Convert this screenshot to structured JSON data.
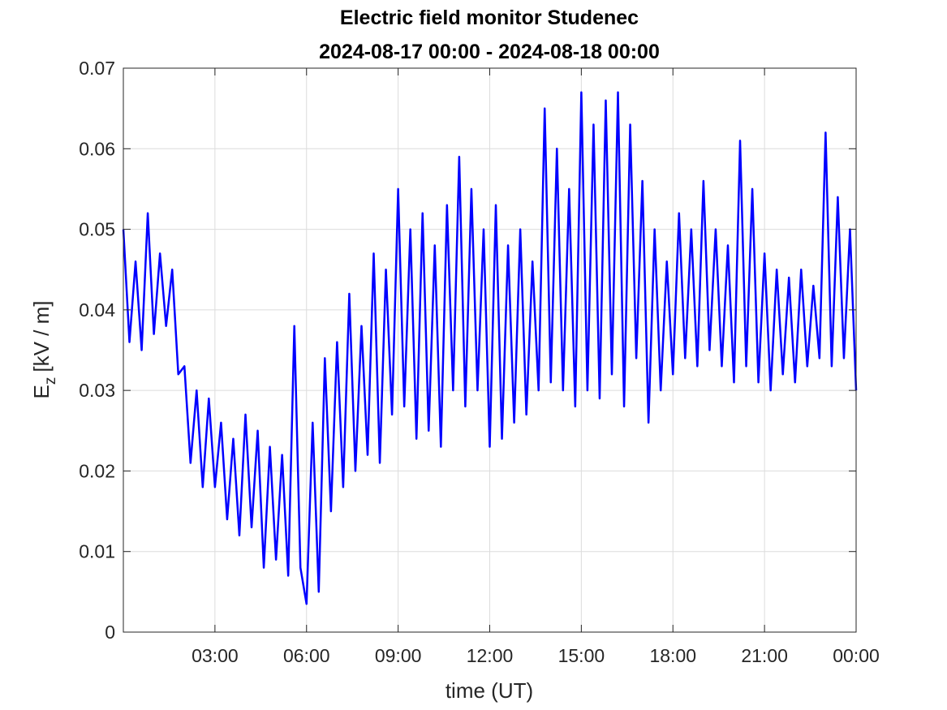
{
  "chart_data": {
    "type": "line",
    "title": "Electric field monitor Studenec",
    "subtitle": "2024-08-17 00:00 - 2024-08-18 00:00",
    "xlabel": "time (UT)",
    "ylabel_symbol": "E",
    "ylabel_subscript": "z",
    "ylabel_unit": "[kV / m]",
    "color": "#0000ff",
    "grid": true,
    "xlim": [
      0,
      24
    ],
    "xticks": [
      {
        "value": 3,
        "label": "03:00"
      },
      {
        "value": 6,
        "label": "06:00"
      },
      {
        "value": 9,
        "label": "09:00"
      },
      {
        "value": 12,
        "label": "12:00"
      },
      {
        "value": 15,
        "label": "15:00"
      },
      {
        "value": 18,
        "label": "18:00"
      },
      {
        "value": 21,
        "label": "21:00"
      },
      {
        "value": 24,
        "label": "00:00"
      }
    ],
    "ylim": [
      0,
      0.07
    ],
    "yticks": [
      0,
      0.01,
      0.02,
      0.03,
      0.04,
      0.05,
      0.06,
      0.07
    ],
    "x": [
      0,
      0.2,
      0.4,
      0.6,
      0.8,
      1,
      1.2,
      1.4,
      1.6,
      1.8,
      2,
      2.2,
      2.4,
      2.6,
      2.8,
      3,
      3.2,
      3.4,
      3.6,
      3.8,
      4,
      4.2,
      4.4,
      4.6,
      4.8,
      5,
      5.2,
      5.4,
      5.6,
      5.8,
      6,
      6.2,
      6.4,
      6.6,
      6.8,
      7,
      7.2,
      7.4,
      7.6,
      7.8,
      8,
      8.2,
      8.4,
      8.6,
      8.8,
      9,
      9.2,
      9.4,
      9.6,
      9.8,
      10,
      10.2,
      10.4,
      10.6,
      10.8,
      11,
      11.2,
      11.4,
      11.6,
      11.8,
      12,
      12.2,
      12.4,
      12.6,
      12.8,
      13,
      13.2,
      13.4,
      13.6,
      13.8,
      14,
      14.2,
      14.4,
      14.6,
      14.8,
      15,
      15.2,
      15.4,
      15.6,
      15.8,
      16,
      16.2,
      16.4,
      16.6,
      16.8,
      17,
      17.2,
      17.4,
      17.6,
      17.8,
      18,
      18.2,
      18.4,
      18.6,
      18.8,
      19,
      19.2,
      19.4,
      19.6,
      19.8,
      20,
      20.2,
      20.4,
      20.6,
      20.8,
      21,
      21.2,
      21.4,
      21.6,
      21.8,
      22,
      22.2,
      22.4,
      22.6,
      22.8,
      23,
      23.2,
      23.4,
      23.6,
      23.8,
      24
    ],
    "values": [
      0.05,
      0.036,
      0.046,
      0.035,
      0.052,
      0.037,
      0.047,
      0.038,
      0.045,
      0.032,
      0.033,
      0.021,
      0.03,
      0.018,
      0.029,
      0.018,
      0.026,
      0.014,
      0.024,
      0.012,
      0.027,
      0.013,
      0.025,
      0.008,
      0.023,
      0.009,
      0.022,
      0.007,
      0.038,
      0.008,
      0.0035,
      0.026,
      0.005,
      0.034,
      0.015,
      0.036,
      0.018,
      0.042,
      0.02,
      0.038,
      0.022,
      0.047,
      0.021,
      0.045,
      0.027,
      0.055,
      0.028,
      0.05,
      0.024,
      0.052,
      0.025,
      0.048,
      0.023,
      0.053,
      0.03,
      0.059,
      0.028,
      0.055,
      0.03,
      0.05,
      0.023,
      0.053,
      0.024,
      0.048,
      0.026,
      0.05,
      0.027,
      0.046,
      0.03,
      0.065,
      0.031,
      0.06,
      0.03,
      0.055,
      0.028,
      0.067,
      0.03,
      0.063,
      0.029,
      0.066,
      0.032,
      0.067,
      0.028,
      0.063,
      0.034,
      0.056,
      0.026,
      0.05,
      0.03,
      0.046,
      0.032,
      0.052,
      0.034,
      0.05,
      0.033,
      0.056,
      0.035,
      0.05,
      0.033,
      0.048,
      0.031,
      0.061,
      0.033,
      0.055,
      0.031,
      0.047,
      0.03,
      0.045,
      0.032,
      0.044,
      0.031,
      0.045,
      0.033,
      0.043,
      0.034,
      0.062,
      0.033,
      0.054,
      0.034,
      0.05,
      0.03
    ]
  }
}
